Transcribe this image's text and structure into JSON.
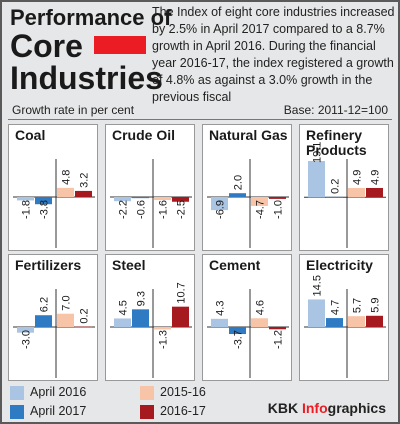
{
  "header": {
    "title_line1": "Performance of",
    "title_line2": "Core",
    "title_line3": "Industries",
    "description": "The Index of eight core industries increased by 2.5% in April 2017 compared to a 8.7% growth in April 2016. During the financial year 2016-17, the index registered a growth of 4.8% as against a 3.0% growth in the previous fiscal",
    "subtitle": "Growth rate in per cent",
    "base": "Base: 2011-12=100"
  },
  "colors": {
    "april_2016": "#aac4e4",
    "april_2017": "#2e7bc4",
    "fy_2015_16": "#f8c4a8",
    "fy_2016_17": "#a6191e",
    "accent": "#ec1c24"
  },
  "legend": {
    "items": [
      {
        "label": "April 2016",
        "color": "#aac4e4"
      },
      {
        "label": "April 2017",
        "color": "#2e7bc4"
      },
      {
        "label": "2015-16",
        "color": "#f8c4a8"
      },
      {
        "label": "2016-17",
        "color": "#a6191e"
      }
    ]
  },
  "credit": {
    "prefix": "KBK ",
    "highlight": "Info",
    "suffix": "graphics"
  },
  "chart_data": {
    "type": "bar",
    "categories": [
      "April 2016",
      "April 2017",
      "2015-16",
      "2016-17"
    ],
    "ylabel": "Growth rate in per cent",
    "panels": [
      {
        "name": "Coal",
        "values": [
          -1.8,
          -3.8,
          4.8,
          3.2
        ],
        "labels": [
          "-1.8",
          "-3.8",
          "4.8",
          "3.2"
        ]
      },
      {
        "name": "Crude Oil",
        "values": [
          -2.2,
          -0.6,
          -1.6,
          -2.5
        ],
        "labels": [
          "-2.2",
          "-0.6",
          "-1.6",
          "-2.5"
        ]
      },
      {
        "name": "Natural Gas",
        "values": [
          -6.9,
          2.0,
          -4.7,
          -1.0
        ],
        "labels": [
          "-6.9",
          "2.0",
          "-4.7",
          "-1.0"
        ]
      },
      {
        "name": "Refinery Products",
        "values": [
          19.1,
          0.2,
          4.9,
          4.9
        ],
        "labels": [
          "19.1",
          "0.2",
          "4.9",
          "4.9"
        ]
      },
      {
        "name": "Fertilizers",
        "values": [
          -3.0,
          6.2,
          7.0,
          0.2
        ],
        "labels": [
          "-3.0",
          "6.2",
          "7.0",
          "0.2"
        ]
      },
      {
        "name": "Steel",
        "values": [
          4.5,
          9.3,
          -1.3,
          10.7
        ],
        "labels": [
          "4.5",
          "9.3",
          "-1.3",
          "10.7"
        ]
      },
      {
        "name": "Cement",
        "values": [
          4.3,
          -3.7,
          4.6,
          -1.2
        ],
        "labels": [
          "4.3",
          "-3.7",
          "4.6",
          "-1.2"
        ]
      },
      {
        "name": "Electricity",
        "values": [
          14.5,
          4.7,
          5.7,
          5.9
        ],
        "labels": [
          "14.5",
          "4.7",
          "5.7",
          "5.9"
        ]
      }
    ]
  }
}
